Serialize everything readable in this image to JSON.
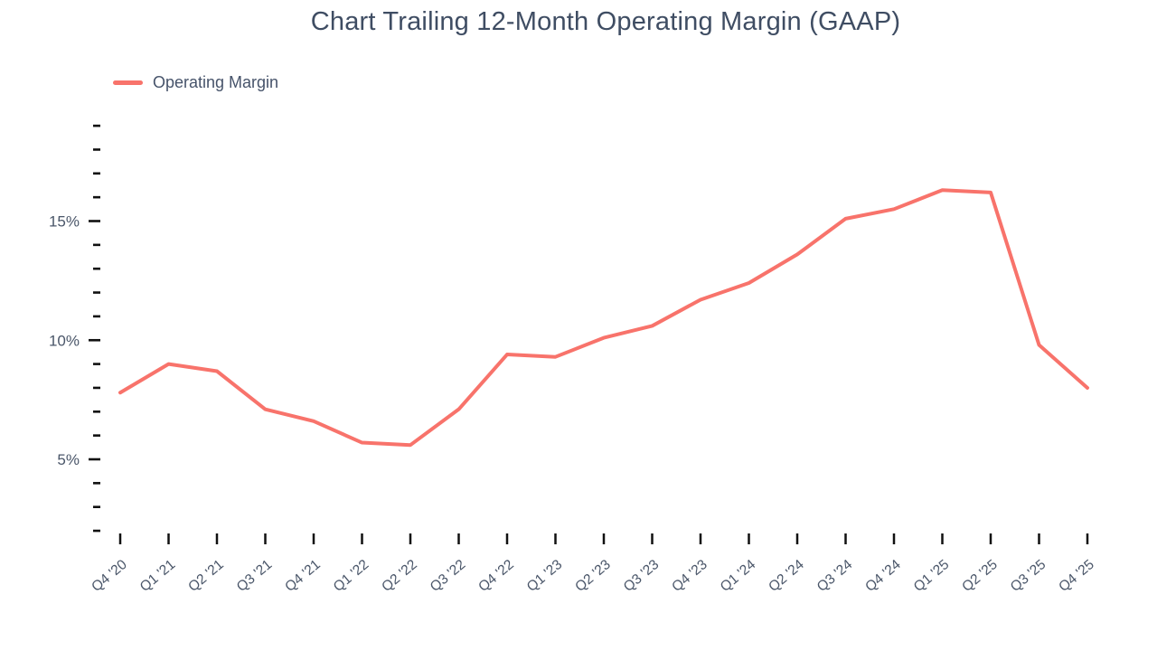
{
  "header": {
    "title": "Chart Trailing 12-Month Operating Margin (GAAP)"
  },
  "legend": {
    "items": [
      {
        "label": "Operating Margin",
        "color": "#f8736b"
      }
    ]
  },
  "chart_data": {
    "type": "line",
    "title": "Chart Trailing 12-Month Operating Margin (GAAP)",
    "categories": [
      "Q4 '20",
      "Q1 '21",
      "Q2 '21",
      "Q3 '21",
      "Q4 '21",
      "Q1 '22",
      "Q2 '22",
      "Q3 '22",
      "Q4 '22",
      "Q1 '23",
      "Q2 '23",
      "Q3 '23",
      "Q4 '23",
      "Q1 '24",
      "Q2 '24",
      "Q3 '24",
      "Q4 '24",
      "Q1 '25",
      "Q2 '25",
      "Q3 '25",
      "Q4 '25"
    ],
    "series": [
      {
        "name": "Operating Margin",
        "color": "#f8736b",
        "values": [
          7.8,
          9.0,
          8.7,
          7.1,
          6.6,
          5.7,
          5.6,
          7.1,
          9.4,
          9.3,
          10.1,
          10.6,
          11.7,
          12.4,
          13.6,
          15.1,
          15.5,
          16.3,
          16.2,
          9.8,
          8.0
        ]
      }
    ],
    "unit": "%",
    "xlabel": "",
    "ylabel": "",
    "y_axis": {
      "min": 2,
      "max": 19,
      "minor_step": 1,
      "major_step": 5,
      "labeled_values": [
        5,
        10,
        15
      ],
      "labeled_ticks": [
        "5%",
        "10%",
        "15%"
      ],
      "tick_format": "percent"
    },
    "x_axis": {
      "tick_label_rotation_deg": -40
    },
    "grid": false,
    "legend_position": "top-left",
    "colors": {
      "line": "#f8736b",
      "axis_text": "#4a5669",
      "tick": "#111111",
      "title": "#3f4d63",
      "background": "#ffffff"
    }
  }
}
